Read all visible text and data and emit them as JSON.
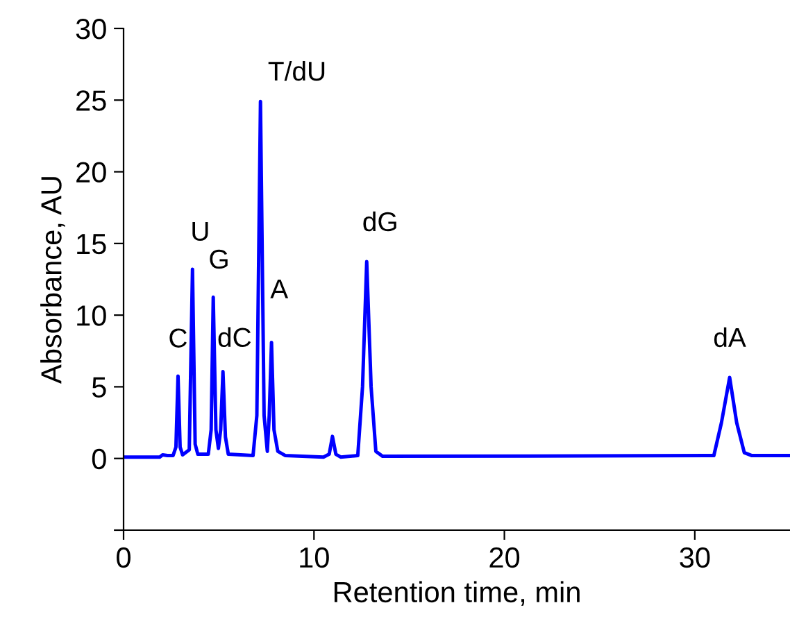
{
  "chart_data": {
    "type": "line",
    "xlabel": "Retention time, min",
    "ylabel": "Absorbance, AU",
    "xlim": [
      0,
      35
    ],
    "xticks": [
      0,
      10,
      20,
      30
    ],
    "ylim": [
      -5,
      30
    ],
    "yticks": [
      {
        "value": -5,
        "label": null
      },
      0,
      5,
      10,
      15,
      20,
      25,
      30
    ],
    "grid": false,
    "legend": false,
    "marker": "none",
    "line_style": "solid",
    "series": [
      {
        "color": "#0000ff",
        "x": [
          0,
          1.9,
          2.05,
          2.3,
          2.6,
          2.75,
          2.86,
          2.97,
          3.1,
          3.45,
          3.62,
          3.76,
          3.9,
          4.45,
          4.6,
          4.71,
          4.85,
          4.98,
          5.1,
          5.22,
          5.35,
          5.5,
          6.8,
          7.0,
          7.19,
          7.38,
          7.55,
          7.65,
          7.77,
          7.9,
          8.1,
          8.5,
          10.5,
          10.8,
          10.97,
          11.15,
          11.4,
          12.3,
          12.55,
          12.77,
          13.0,
          13.25,
          13.6,
          31.0,
          31.4,
          31.83,
          32.2,
          32.6,
          33.0,
          35
        ],
        "values": [
          0.1,
          0.1,
          0.25,
          0.2,
          0.2,
          0.8,
          5.75,
          0.8,
          0.25,
          0.6,
          13.2,
          1.0,
          0.3,
          0.3,
          2.0,
          11.25,
          2.0,
          0.7,
          2.0,
          6.06,
          1.5,
          0.3,
          0.2,
          3.0,
          24.9,
          3.0,
          0.5,
          3.0,
          8.1,
          2.0,
          0.5,
          0.2,
          0.1,
          0.3,
          1.54,
          0.3,
          0.1,
          0.2,
          5.0,
          13.73,
          5.0,
          0.5,
          0.15,
          0.2,
          2.5,
          5.65,
          2.5,
          0.4,
          0.2,
          0.2
        ]
      }
    ],
    "annotations": [
      {
        "text": "C",
        "x": 2.86,
        "y": 5.75
      },
      {
        "text": "U",
        "x": 3.62,
        "y": 13.2
      },
      {
        "text": "G",
        "x": 4.71,
        "y": 11.25
      },
      {
        "text": "dC",
        "x": 5.22,
        "y": 6.06
      },
      {
        "text": "T/dU",
        "x": 7.19,
        "y": 24.9
      },
      {
        "text": "A",
        "x": 7.77,
        "y": 8.1
      },
      {
        "text": "dG",
        "x": 12.77,
        "y": 13.73
      },
      {
        "text": "dA",
        "x": 31.83,
        "y": 5.65
      }
    ]
  }
}
